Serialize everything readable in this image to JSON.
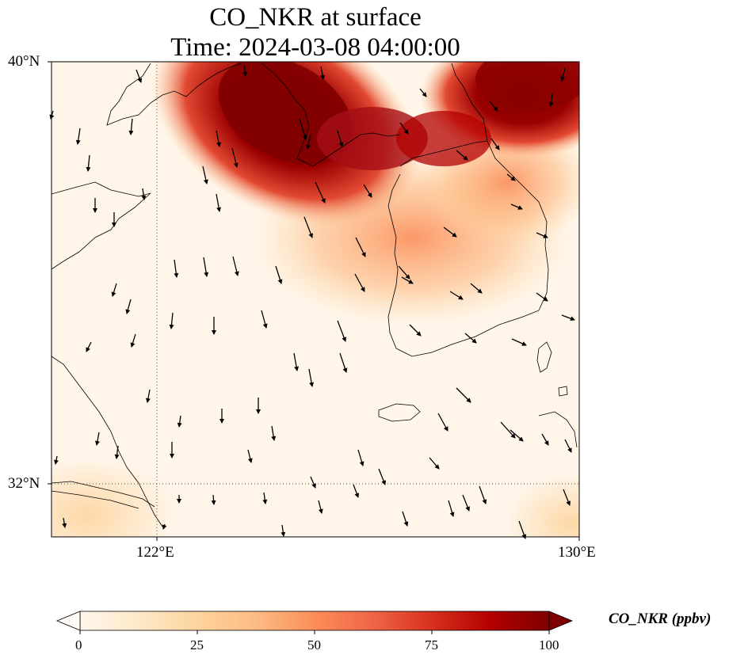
{
  "title": {
    "line1": "CO_NKR at surface",
    "line2": "Time: 2024-03-08 04:00:00"
  },
  "map": {
    "lon_range": [
      120,
      130
    ],
    "lat_range": [
      31,
      40
    ],
    "gridlines": {
      "lon": [
        122
      ],
      "lat": [
        32
      ],
      "style": "dotted"
    },
    "x_ticks": [
      "122°E",
      "130°E"
    ],
    "y_ticks": [
      "40°N",
      "32°N"
    ],
    "field": "CO_NKR",
    "colormap": "OrRd-like (white to dark red)",
    "vectors": "wind arrows, predominantly southward / southeastward",
    "plume_description_values": {
      "north_max": 100,
      "background": 5
    }
  },
  "colorbar": {
    "min": 0,
    "max": 100,
    "ticks": [
      "0",
      "25",
      "50",
      "75",
      "100"
    ],
    "extend": "both",
    "label": "CO_NKR (ppbv)",
    "colors": [
      "#fff7ec",
      "#fee8c8",
      "#fdd49e",
      "#fdbb84",
      "#fc8d59",
      "#ef6548",
      "#d7301f",
      "#b30000",
      "#7f0000"
    ]
  }
}
